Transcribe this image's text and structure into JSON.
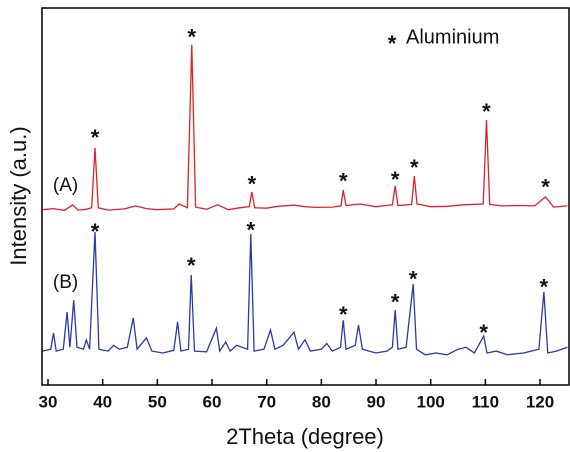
{
  "chart_data": {
    "type": "line",
    "x_label": "2Theta (degree)",
    "y_label": "Intensity (a.u.)",
    "xlim": [
      28.9,
      125.3
    ],
    "ylim": [
      0,
      100
    ],
    "xticks": [
      30,
      40,
      50,
      60,
      70,
      80,
      90,
      100,
      110,
      120
    ],
    "legend": {
      "marker": "*",
      "label": "Aluminium"
    },
    "series": [
      {
        "name": "(A)",
        "color": "#d9232e",
        "x": [
          29,
          31,
          33,
          34.5,
          35.5,
          37,
          38,
          38.6,
          39.2,
          41,
          44,
          46,
          48,
          50,
          53,
          54,
          55.5,
          56.3,
          57,
          59,
          61,
          63,
          65,
          66.8,
          67.3,
          67.8,
          70,
          72,
          75,
          77,
          79,
          82,
          83.6,
          84,
          84.5,
          87,
          90,
          93,
          93.5,
          94,
          96.5,
          97,
          97.5,
          100,
          103,
          106,
          109.6,
          110.2,
          110.8,
          113,
          116,
          119,
          121,
          122.5,
          125
        ],
        "values": [
          46.5,
          46.8,
          46.3,
          47.8,
          46.4,
          46.6,
          47,
          62.9,
          47,
          46.4,
          46.7,
          47.5,
          46.8,
          46.5,
          46.7,
          48,
          47,
          90.2,
          47.2,
          46.6,
          47.8,
          46.5,
          47,
          47.3,
          51.2,
          47,
          46.9,
          47.4,
          47.7,
          47.3,
          47.1,
          47.2,
          47.5,
          51.7,
          47.6,
          48,
          47.3,
          47.8,
          52.8,
          47.6,
          47.9,
          55.4,
          48,
          47.3,
          47.4,
          47.8,
          48,
          70.3,
          47.9,
          47.5,
          47.6,
          47.5,
          49.9,
          47.2,
          47.5
        ],
        "label_x": 30.9,
        "label_y": 52.8
      },
      {
        "name": "(B)",
        "color": "#2b3aa8",
        "x": [
          29,
          30.5,
          31,
          31.5,
          32.8,
          33.5,
          34,
          34.7,
          35.3,
          36.5,
          37,
          37.6,
          38.6,
          39.3,
          41,
          42,
          43,
          44.5,
          45.6,
          46.3,
          48,
          49,
          51,
          53,
          53.7,
          54.3,
          55.7,
          56.2,
          56.8,
          59,
          60.8,
          61.4,
          62.5,
          63.3,
          64.5,
          66.5,
          67.1,
          67.7,
          69.5,
          70.7,
          71.5,
          73,
          75,
          75.8,
          77,
          78,
          80,
          81,
          82,
          83.5,
          84,
          84.5,
          86.2,
          86.8,
          87.5,
          90,
          92,
          93,
          93.5,
          94,
          95.5,
          96.8,
          97.4,
          99,
          101,
          103,
          105,
          106.5,
          108,
          109.7,
          110.3,
          112,
          114,
          117,
          119.8,
          120.7,
          121.4,
          123,
          125
        ],
        "values": [
          9,
          9.5,
          13.8,
          9,
          9.5,
          19.4,
          10,
          22.5,
          10,
          9.5,
          12,
          9.5,
          40.6,
          9.5,
          9,
          10.5,
          9.5,
          10,
          17.8,
          9.5,
          12.5,
          9,
          8.5,
          9.2,
          16.7,
          9,
          9.5,
          29.2,
          9,
          8.8,
          15.1,
          9,
          11.4,
          9,
          10.5,
          9.5,
          40,
          9,
          9.5,
          14.6,
          9.5,
          10.5,
          14,
          9.5,
          12,
          9,
          9.5,
          11,
          9,
          10,
          17.2,
          9.5,
          10.5,
          15.9,
          9.5,
          8.5,
          9,
          10,
          19.9,
          9.5,
          10,
          26.8,
          9.5,
          8,
          8.5,
          8,
          9.5,
          10,
          8.5,
          13,
          8.5,
          9,
          8,
          8.5,
          9.5,
          24.7,
          8.5,
          9,
          10
        ],
        "label_x": 30.9,
        "label_y": 27.1
      }
    ],
    "annotations": [
      {
        "text": "*",
        "x": 38.6,
        "y": 66.8
      },
      {
        "text": "*",
        "x": 56.3,
        "y": 93.4
      },
      {
        "text": "*",
        "x": 67.3,
        "y": 54.4
      },
      {
        "text": "*",
        "x": 84,
        "y": 55.2
      },
      {
        "text": "*",
        "x": 93.5,
        "y": 55.7
      },
      {
        "text": "*",
        "x": 97,
        "y": 58.9
      },
      {
        "text": "*",
        "x": 110.2,
        "y": 73.7
      },
      {
        "text": "*",
        "x": 121,
        "y": 53.6
      },
      {
        "text": "*",
        "x": 38.6,
        "y": 41.9
      },
      {
        "text": "*",
        "x": 56.2,
        "y": 32.9
      },
      {
        "text": "*",
        "x": 67.1,
        "y": 42.2
      },
      {
        "text": "*",
        "x": 84,
        "y": 19.9
      },
      {
        "text": "*",
        "x": 93.5,
        "y": 23.1
      },
      {
        "text": "*",
        "x": 96.8,
        "y": 29.2
      },
      {
        "text": "*",
        "x": 109.7,
        "y": 15.1
      },
      {
        "text": "*",
        "x": 120.7,
        "y": 27.1
      }
    ]
  }
}
